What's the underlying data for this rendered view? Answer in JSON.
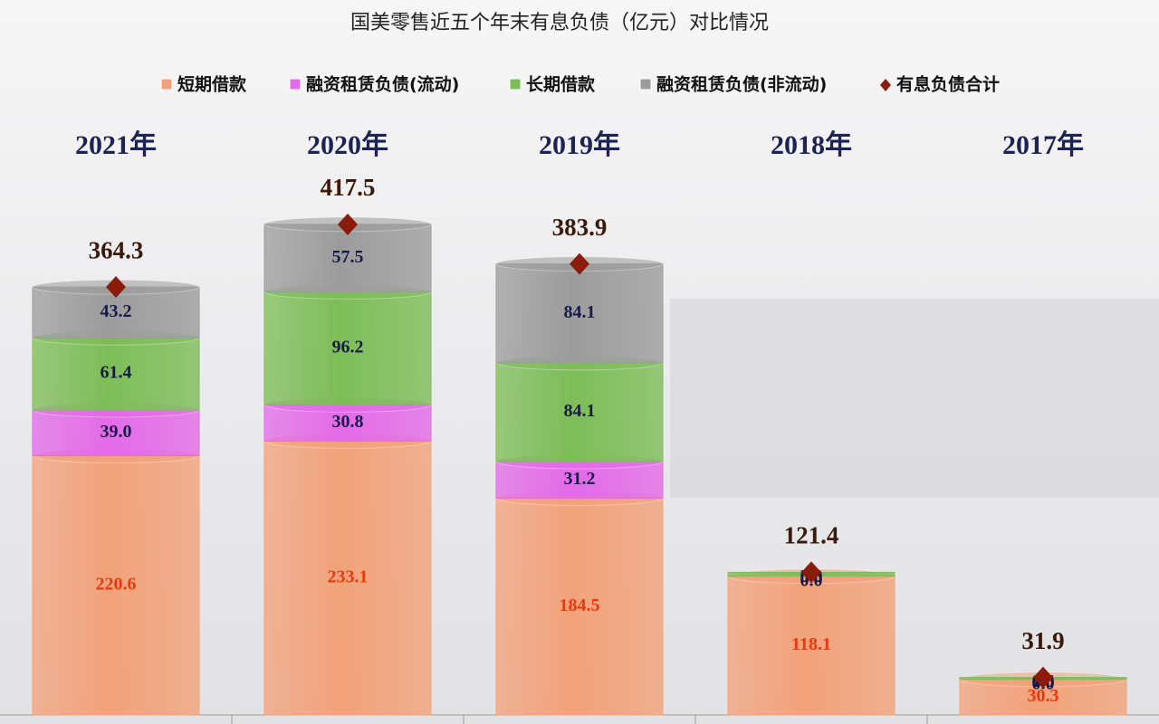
{
  "chart_data": {
    "type": "stacked-bar",
    "title": "国美零售近五个年末有息负债（亿元）对比情况",
    "categories": [
      "2021年",
      "2020年",
      "2019年",
      "2018年",
      "2017年"
    ],
    "series": [
      {
        "name": "短期借款",
        "color": "#f2a27a",
        "values": [
          220.6,
          233.1,
          184.5,
          118.1,
          30.3
        ],
        "value_labels": [
          "220.6",
          "233.1",
          "184.5",
          "118.1",
          "30.3"
        ]
      },
      {
        "name": "融资租赁负债(流动)",
        "color": "#e36ae8",
        "values": [
          39.0,
          30.8,
          31.2,
          0,
          0
        ],
        "value_labels": [
          "39.0",
          "30.8",
          "31.2",
          "0.0",
          "0.0"
        ]
      },
      {
        "name": "长期借款",
        "color": "#7dbd57",
        "values": [
          61.4,
          96.2,
          84.1,
          3.3,
          1.6
        ],
        "value_labels": [
          "61.4",
          "96.2",
          "84.1",
          "3.3",
          "1.6"
        ]
      },
      {
        "name": "融资租赁负债(非流动)",
        "color": "#9c9c9c",
        "values": [
          43.2,
          57.5,
          84.1,
          0,
          0
        ],
        "value_labels": [
          "43.2",
          "57.5",
          "84.1",
          "0.0",
          "0.0"
        ]
      }
    ],
    "total": {
      "name": "有息负债合计",
      "color": "#8b1c0c",
      "values": [
        364.3,
        417.5,
        383.9,
        121.4,
        31.9
      ]
    }
  }
}
